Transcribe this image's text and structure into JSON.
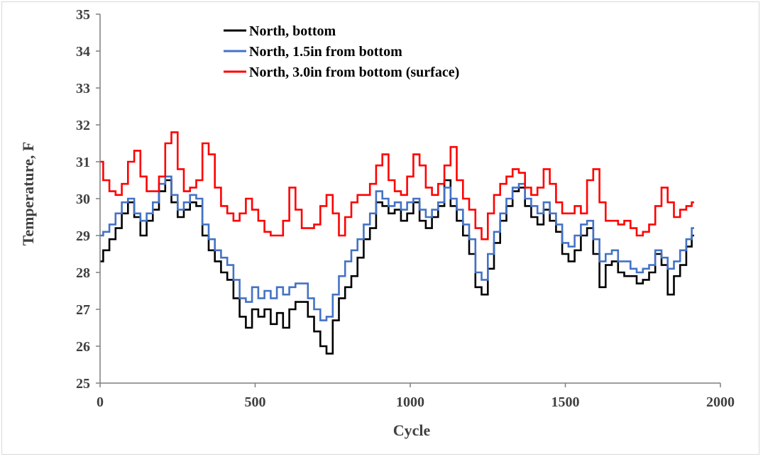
{
  "chart_data": {
    "type": "line",
    "title": "",
    "xlabel": "Cycle",
    "ylabel": "Temperature, F",
    "xlim": [
      0,
      2000
    ],
    "ylim": [
      25,
      35
    ],
    "xticks": [
      "0",
      "500",
      "1000",
      "1500",
      "2000"
    ],
    "yticks": [
      "25",
      "26",
      "27",
      "28",
      "29",
      "30",
      "31",
      "32",
      "33",
      "34",
      "35"
    ],
    "grid": false,
    "legend_position": "top-left",
    "series": [
      {
        "name": "North, bottom",
        "color": "#000000",
        "x": [
          0,
          20,
          40,
          60,
          80,
          100,
          120,
          140,
          160,
          180,
          200,
          220,
          240,
          260,
          280,
          300,
          320,
          340,
          360,
          380,
          400,
          420,
          440,
          460,
          480,
          500,
          520,
          540,
          560,
          580,
          600,
          620,
          640,
          660,
          680,
          700,
          720,
          740,
          760,
          780,
          800,
          820,
          840,
          860,
          880,
          900,
          920,
          940,
          960,
          980,
          1000,
          1020,
          1040,
          1060,
          1080,
          1100,
          1120,
          1140,
          1160,
          1180,
          1200,
          1220,
          1240,
          1260,
          1280,
          1300,
          1320,
          1340,
          1360,
          1380,
          1400,
          1420,
          1440,
          1460,
          1480,
          1500,
          1520,
          1540,
          1560,
          1580,
          1600,
          1620,
          1640,
          1660,
          1680,
          1700,
          1720,
          1740,
          1760,
          1780,
          1800,
          1820,
          1840,
          1860,
          1880,
          1900,
          1915
        ],
        "y": [
          28.3,
          28.6,
          28.9,
          29.2,
          29.6,
          29.9,
          29.5,
          29.0,
          29.4,
          29.7,
          30.2,
          30.5,
          29.9,
          29.5,
          29.7,
          29.9,
          29.8,
          29.0,
          28.6,
          28.3,
          28.0,
          27.8,
          27.3,
          26.8,
          26.5,
          27.0,
          26.8,
          27.0,
          26.6,
          26.9,
          26.5,
          27.0,
          27.2,
          27.2,
          26.8,
          26.4,
          26.0,
          25.8,
          26.7,
          27.3,
          27.6,
          27.9,
          28.4,
          28.9,
          29.2,
          29.9,
          29.8,
          29.6,
          29.7,
          29.4,
          29.6,
          29.9,
          29.4,
          29.2,
          29.5,
          29.8,
          30.5,
          29.8,
          29.4,
          29.0,
          28.5,
          27.6,
          27.4,
          28.1,
          28.8,
          29.4,
          29.8,
          30.2,
          30.3,
          29.8,
          29.5,
          29.3,
          29.7,
          29.4,
          29.1,
          28.5,
          28.3,
          28.6,
          29.0,
          29.2,
          28.5,
          27.6,
          28.2,
          28.3,
          28.0,
          27.9,
          27.9,
          27.7,
          27.8,
          28.0,
          28.5,
          28.2,
          27.4,
          27.9,
          28.2,
          28.7,
          29.0
        ]
      },
      {
        "name": "North, 1.5in from bottom",
        "color": "#4472c4",
        "x": [
          0,
          20,
          40,
          60,
          80,
          100,
          120,
          140,
          160,
          180,
          200,
          220,
          240,
          260,
          280,
          300,
          320,
          340,
          360,
          380,
          400,
          420,
          440,
          460,
          480,
          500,
          520,
          540,
          560,
          580,
          600,
          620,
          640,
          660,
          680,
          700,
          720,
          740,
          760,
          780,
          800,
          820,
          840,
          860,
          880,
          900,
          920,
          940,
          960,
          980,
          1000,
          1020,
          1040,
          1060,
          1080,
          1100,
          1120,
          1140,
          1160,
          1180,
          1200,
          1220,
          1240,
          1260,
          1280,
          1300,
          1320,
          1340,
          1360,
          1380,
          1400,
          1420,
          1440,
          1460,
          1480,
          1500,
          1520,
          1540,
          1560,
          1580,
          1600,
          1620,
          1640,
          1660,
          1680,
          1700,
          1720,
          1740,
          1760,
          1780,
          1800,
          1820,
          1840,
          1860,
          1880,
          1900,
          1915
        ],
        "y": [
          29.0,
          29.1,
          29.3,
          29.6,
          29.9,
          30.0,
          29.6,
          29.4,
          29.6,
          29.9,
          30.4,
          30.6,
          30.1,
          29.7,
          29.9,
          30.1,
          30.0,
          29.3,
          28.9,
          28.6,
          28.4,
          28.2,
          27.8,
          27.3,
          27.2,
          27.6,
          27.3,
          27.5,
          27.3,
          27.6,
          27.4,
          27.6,
          27.7,
          27.7,
          27.3,
          27.0,
          26.7,
          26.8,
          27.4,
          27.9,
          28.3,
          28.6,
          28.9,
          29.3,
          29.6,
          30.2,
          30.0,
          29.8,
          29.9,
          29.7,
          29.9,
          30.0,
          29.7,
          29.5,
          29.7,
          29.9,
          30.3,
          30.0,
          29.7,
          29.3,
          28.9,
          28.0,
          27.8,
          28.5,
          29.1,
          29.6,
          30.0,
          30.3,
          30.4,
          30.0,
          29.8,
          29.6,
          29.9,
          29.6,
          29.3,
          28.8,
          28.7,
          29.0,
          29.3,
          29.4,
          28.9,
          28.3,
          28.5,
          28.6,
          28.3,
          28.3,
          28.1,
          28.0,
          28.1,
          28.2,
          28.6,
          28.4,
          28.1,
          28.3,
          28.6,
          28.9,
          29.2
        ]
      },
      {
        "name": "North, 3.0in from bottom (surface)",
        "color": "#ff0000",
        "x": [
          0,
          20,
          40,
          60,
          80,
          100,
          120,
          140,
          160,
          180,
          200,
          220,
          240,
          260,
          280,
          300,
          320,
          340,
          360,
          380,
          400,
          420,
          440,
          460,
          480,
          500,
          520,
          540,
          560,
          580,
          600,
          620,
          640,
          660,
          680,
          700,
          720,
          740,
          760,
          780,
          800,
          820,
          840,
          860,
          880,
          900,
          920,
          940,
          960,
          980,
          1000,
          1020,
          1040,
          1060,
          1080,
          1100,
          1120,
          1140,
          1160,
          1180,
          1200,
          1220,
          1240,
          1260,
          1280,
          1300,
          1320,
          1340,
          1360,
          1380,
          1400,
          1420,
          1440,
          1460,
          1480,
          1500,
          1520,
          1540,
          1560,
          1580,
          1600,
          1620,
          1640,
          1660,
          1680,
          1700,
          1720,
          1740,
          1760,
          1780,
          1800,
          1820,
          1840,
          1860,
          1880,
          1900,
          1915
        ],
        "y": [
          31.0,
          30.5,
          30.2,
          30.1,
          30.4,
          31.0,
          31.3,
          30.6,
          30.2,
          30.2,
          30.6,
          31.5,
          31.8,
          30.8,
          30.2,
          30.3,
          30.5,
          31.5,
          31.2,
          30.3,
          29.8,
          29.6,
          29.4,
          29.6,
          30.0,
          29.7,
          29.4,
          29.1,
          29.0,
          29.0,
          29.4,
          30.3,
          29.7,
          29.2,
          29.2,
          29.3,
          29.8,
          30.1,
          29.6,
          29.0,
          29.5,
          29.9,
          30.1,
          30.1,
          30.4,
          30.9,
          31.2,
          30.5,
          30.2,
          30.1,
          30.6,
          31.2,
          30.9,
          30.3,
          30.1,
          30.4,
          30.9,
          31.4,
          30.5,
          30.0,
          29.7,
          29.2,
          28.9,
          29.6,
          30.1,
          30.4,
          30.6,
          30.8,
          30.7,
          30.3,
          30.1,
          30.3,
          30.8,
          30.4,
          29.9,
          29.6,
          29.6,
          29.8,
          29.6,
          30.5,
          30.8,
          29.9,
          29.4,
          29.4,
          29.3,
          29.4,
          29.2,
          29.0,
          29.1,
          29.3,
          29.8,
          30.3,
          29.9,
          29.5,
          29.7,
          29.8,
          29.9
        ]
      }
    ]
  }
}
